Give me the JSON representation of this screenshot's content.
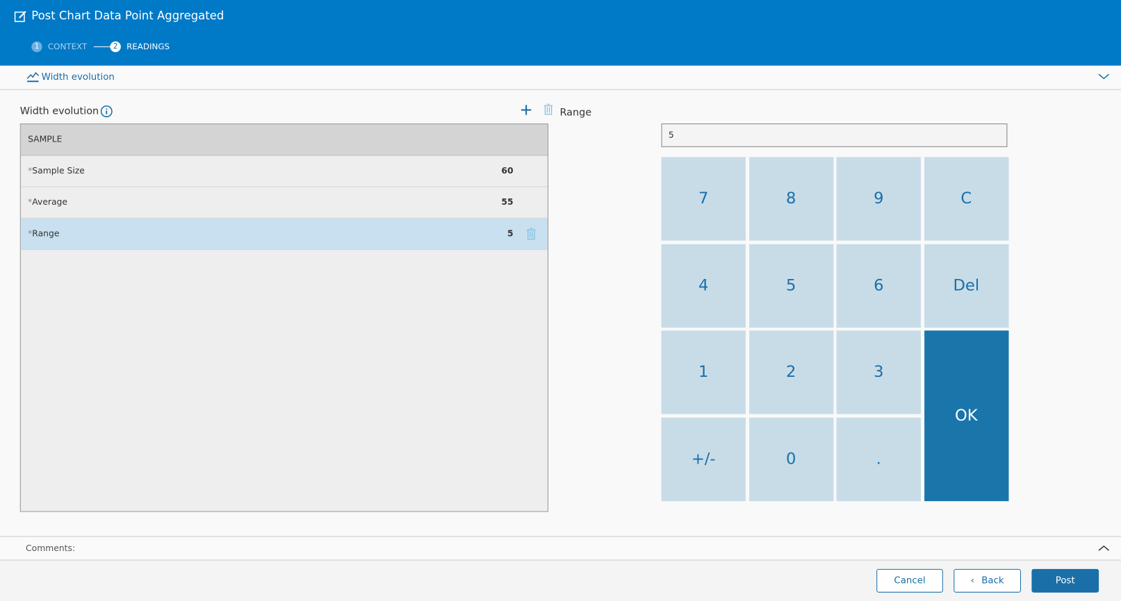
{
  "header": {
    "title": "Post Chart Data Point Aggregated",
    "title_icon": "edit-icon",
    "steps": [
      {
        "number": "1",
        "label": "CONTEXT",
        "active": false
      },
      {
        "number": "2",
        "label": "READINGS",
        "active": true
      }
    ]
  },
  "section": {
    "label": "Width evolution",
    "icon": "chart-icon"
  },
  "table": {
    "title": "Width evolution",
    "header": "SAMPLE",
    "rows": [
      {
        "label": "Sample Size",
        "value": "60",
        "required": "*"
      },
      {
        "label": "Average",
        "value": "55",
        "required": "*"
      },
      {
        "label": "Range",
        "value": "5",
        "required": "*",
        "selected": true
      }
    ]
  },
  "current_field": "Range",
  "keypad": {
    "display": "5",
    "keys": [
      "7",
      "8",
      "9",
      "C",
      "4",
      "5",
      "6",
      "Del",
      "1",
      "2",
      "3",
      "+/-",
      "0",
      "."
    ],
    "ok": "OK"
  },
  "comments": {
    "label": "Comments:"
  },
  "footer": {
    "cancel": "Cancel",
    "back": "Back",
    "post": "Post"
  },
  "colors": {
    "primary": "#0079c7",
    "key": "#c8dce8",
    "ok": "#1a75ab",
    "selected_row": "#c8e0ef"
  }
}
